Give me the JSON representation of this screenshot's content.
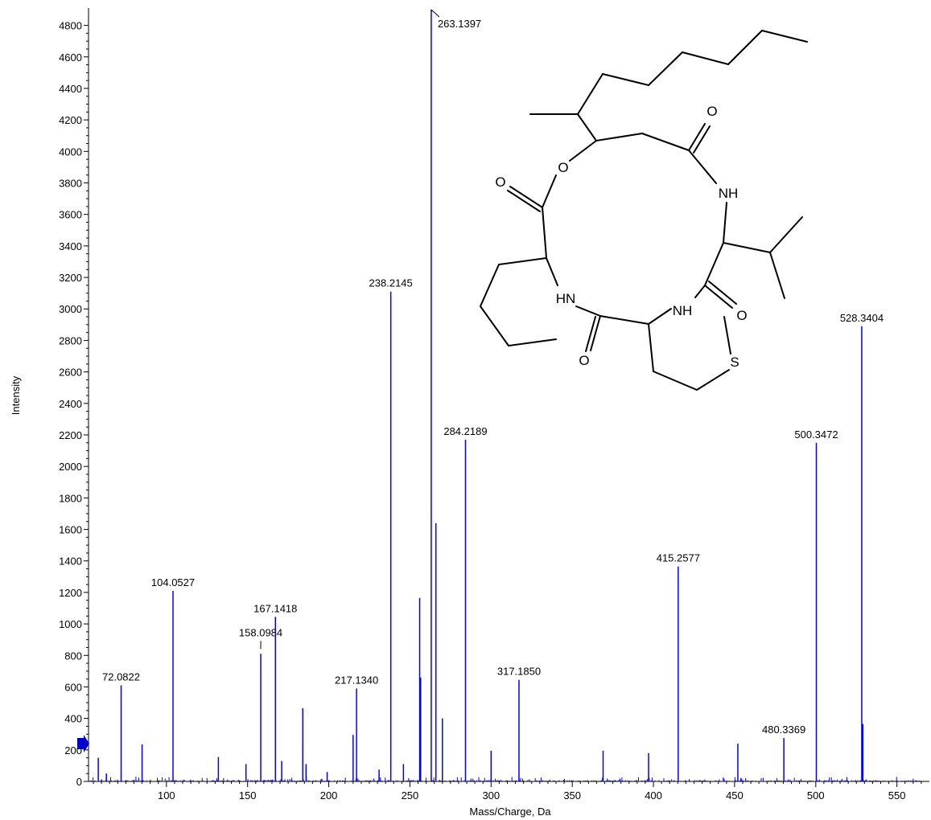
{
  "chart_data": {
    "type": "bar",
    "xlabel": "Mass/Charge, Da",
    "ylabel": "Intensity",
    "xlim": [
      52,
      570
    ],
    "ylim": [
      0,
      4900
    ],
    "x_ticks": [
      100,
      150,
      200,
      250,
      300,
      350,
      400,
      450,
      500,
      550
    ],
    "y_ticks": [
      0,
      200,
      400,
      600,
      800,
      1000,
      1200,
      1400,
      1600,
      1800,
      2000,
      2200,
      2400,
      2600,
      2800,
      3000,
      3200,
      3400,
      3600,
      3800,
      4000,
      4200,
      4400,
      4600,
      4800
    ],
    "color": "#0000ff",
    "labeled_peaks": [
      {
        "x": 72.0822,
        "y": 610,
        "label": "72.0822"
      },
      {
        "x": 104.0527,
        "y": 1210,
        "label": "104.0527"
      },
      {
        "x": 158.0984,
        "y": 810,
        "label": "158.0984"
      },
      {
        "x": 167.1418,
        "y": 1045,
        "label": "167.1418"
      },
      {
        "x": 217.134,
        "y": 590,
        "label": "217.1340"
      },
      {
        "x": 238.2145,
        "y": 3110,
        "label": "238.2145"
      },
      {
        "x": 263.1397,
        "y": 4900,
        "label": "263.1397"
      },
      {
        "x": 284.2189,
        "y": 2170,
        "label": "284.2189"
      },
      {
        "x": 317.185,
        "y": 645,
        "label": "317.1850"
      },
      {
        "x": 415.2577,
        "y": 1365,
        "label": "415.2577"
      },
      {
        "x": 480.3369,
        "y": 275,
        "label": "480.3369"
      },
      {
        "x": 500.3472,
        "y": 2150,
        "label": "500.3472"
      },
      {
        "x": 528.3404,
        "y": 2890,
        "label": "528.3404"
      }
    ],
    "minor_peaks": [
      {
        "x": 58,
        "y": 150
      },
      {
        "x": 63,
        "y": 50
      },
      {
        "x": 85,
        "y": 235
      },
      {
        "x": 132,
        "y": 155
      },
      {
        "x": 149,
        "y": 110
      },
      {
        "x": 171,
        "y": 130
      },
      {
        "x": 184,
        "y": 465
      },
      {
        "x": 186,
        "y": 110
      },
      {
        "x": 199,
        "y": 60
      },
      {
        "x": 215,
        "y": 295
      },
      {
        "x": 231,
        "y": 75
      },
      {
        "x": 246,
        "y": 110
      },
      {
        "x": 256,
        "y": 1165
      },
      {
        "x": 256.6,
        "y": 660
      },
      {
        "x": 266,
        "y": 1640
      },
      {
        "x": 270,
        "y": 400
      },
      {
        "x": 300,
        "y": 195
      },
      {
        "x": 369,
        "y": 195
      },
      {
        "x": 397,
        "y": 180
      },
      {
        "x": 452,
        "y": 240
      },
      {
        "x": 529,
        "y": 365
      }
    ]
  },
  "structure_labels": {
    "o1": "O",
    "o2": "O",
    "o3": "O",
    "o4": "O",
    "o5": "O",
    "nh1": "NH",
    "nh2": "HN",
    "nh3": "NH",
    "s": "S"
  }
}
